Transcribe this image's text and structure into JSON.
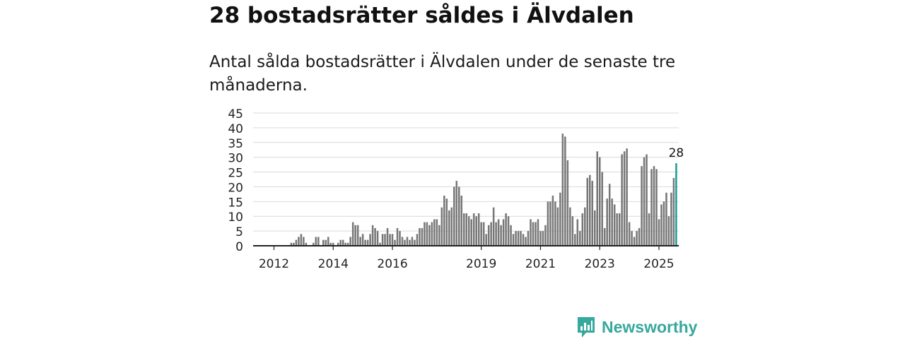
{
  "page": {
    "headline": "28 bostadsrätter såldes i Älvdalen",
    "subtitle": "Antal sålda bostadsrätter i Älvdalen under de senaste tre månaderna."
  },
  "brand": {
    "name": "Newsworthy",
    "logo_icon": "bar-chart-badge-icon",
    "color": "#37a89c"
  },
  "chart_data": {
    "type": "bar",
    "title": "",
    "xlabel": "",
    "ylabel": "",
    "ylim": [
      0,
      45
    ],
    "yticks": [
      0,
      5,
      10,
      15,
      20,
      25,
      30,
      35,
      40,
      45
    ],
    "xtick_labels": [
      "2012",
      "2014",
      "2016",
      "2019",
      "2021",
      "2023",
      "2025"
    ],
    "grid": true,
    "bar_color": "#777777",
    "highlight_color": "#1a9e96",
    "highlight_label": "28",
    "x_start": "2011-12",
    "x_end": "2025-01",
    "values": [
      0,
      0,
      0,
      0,
      0,
      0,
      0,
      0,
      1,
      1,
      2,
      3,
      4,
      3,
      1,
      0,
      0,
      1,
      3,
      3,
      0,
      2,
      2,
      3,
      1,
      1,
      0,
      1,
      2,
      2,
      1,
      1,
      3,
      8,
      7,
      7,
      3,
      4,
      2,
      2,
      4,
      7,
      6,
      5,
      1,
      4,
      4,
      6,
      4,
      4,
      2,
      6,
      5,
      3,
      2,
      3,
      2,
      3,
      2,
      4,
      6,
      6,
      8,
      8,
      7,
      8,
      9,
      9,
      7,
      13,
      17,
      16,
      12,
      13,
      20,
      22,
      20,
      17,
      11,
      11,
      10,
      9,
      11,
      10,
      11,
      8,
      8,
      4,
      7,
      8,
      13,
      8,
      9,
      7,
      9,
      11,
      10,
      7,
      4,
      5,
      5,
      5,
      4,
      3,
      5,
      9,
      8,
      8,
      9,
      5,
      5,
      7,
      15,
      15,
      17,
      15,
      13,
      18,
      38,
      37,
      29,
      13,
      10,
      4,
      9,
      5,
      11,
      13,
      23,
      24,
      22,
      12,
      32,
      30,
      25,
      6,
      16,
      21,
      16,
      14,
      11,
      11,
      31,
      32,
      33,
      8,
      5,
      3,
      5,
      6,
      27,
      30,
      31,
      11,
      26,
      27,
      26,
      9,
      14,
      15,
      18,
      10,
      18,
      23,
      28
    ]
  }
}
